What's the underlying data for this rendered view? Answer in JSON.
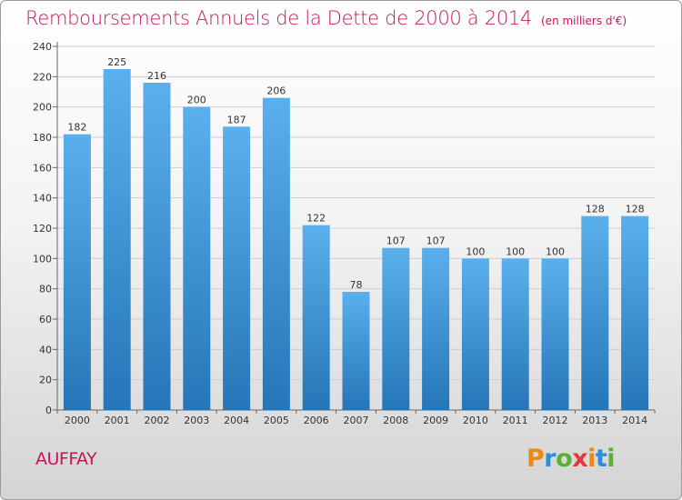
{
  "title": "Remboursements Annuels de la Dette de 2000 à 2014",
  "unit": "(en milliers d'€)",
  "commune": "AUFFAY",
  "logo": {
    "text": "Proxiti",
    "colors": [
      "#e88a1a",
      "#2a8fd6",
      "#5bb030",
      "#e03a3a",
      "#e88a1a",
      "#2a8fd6",
      "#5bb030"
    ]
  },
  "chart_data": {
    "type": "bar",
    "title": "Remboursements Annuels de la Dette de 2000 à 2014",
    "subtitle": "(en milliers d'€)",
    "categories": [
      "2000",
      "2001",
      "2002",
      "2003",
      "2004",
      "2005",
      "2006",
      "2007",
      "2008",
      "2009",
      "2010",
      "2011",
      "2012",
      "2013",
      "2014"
    ],
    "values": [
      182,
      225,
      216,
      200,
      187,
      206,
      122,
      78,
      107,
      107,
      100,
      100,
      100,
      128,
      128
    ],
    "ylim": [
      0,
      240
    ],
    "yticks": [
      0,
      20,
      40,
      60,
      80,
      100,
      120,
      140,
      160,
      180,
      200,
      220,
      240
    ],
    "grid": true,
    "data_labels": true,
    "bar_color": "#3d9de0"
  }
}
